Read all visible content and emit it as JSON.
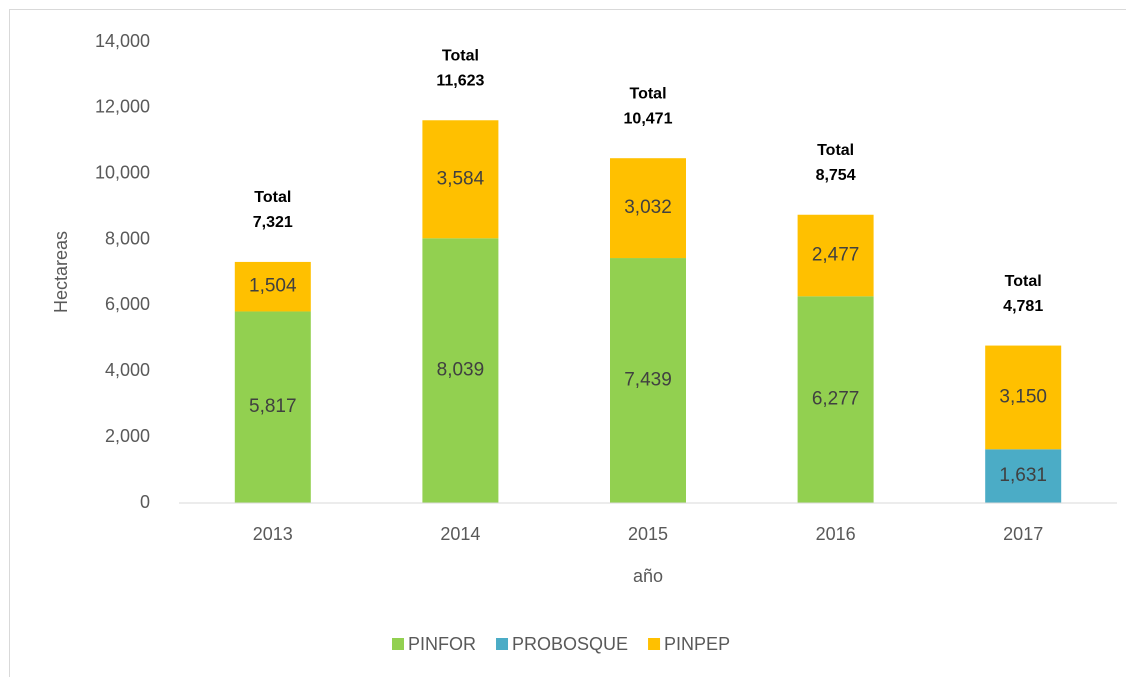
{
  "chart_data": {
    "type": "stacked_bar",
    "categories": [
      "2013",
      "2014",
      "2015",
      "2016",
      "2017"
    ],
    "series": [
      {
        "name": "PINFOR",
        "color": "#92d050",
        "values": [
          5817,
          8039,
          7439,
          6277,
          null
        ],
        "value_labels": [
          "5,817",
          "8,039",
          "7,439",
          "6,277",
          null
        ]
      },
      {
        "name": "PROBOSQUE",
        "color": "#4bacc6",
        "values": [
          null,
          null,
          null,
          null,
          1631
        ],
        "value_labels": [
          null,
          null,
          null,
          null,
          "1,631"
        ]
      },
      {
        "name": "PINPEP",
        "color": "#ffc000",
        "values": [
          1504,
          3584,
          3032,
          2477,
          3150
        ],
        "value_labels": [
          "1,504",
          "3,584",
          "3,032",
          "2,477",
          "3,150"
        ]
      }
    ],
    "total_label": "Total",
    "totals": [
      7321,
      11623,
      10471,
      8754,
      4781
    ],
    "total_labels": [
      "7,321",
      "11,623",
      "10,471",
      "8,754",
      "4,781"
    ],
    "xlabel": "año",
    "ylabel": "Hectareas",
    "ylim": [
      0,
      14000
    ],
    "yticks": [
      0,
      {
        "value": 2000,
        "label": "2,000"
      },
      {
        "value": 4000,
        "label": "4,000"
      },
      {
        "value": 6000,
        "label": "6,000"
      },
      {
        "value": 8000,
        "label": "8,000"
      },
      {
        "value": 10000,
        "label": "10,000"
      },
      {
        "value": 12000,
        "label": "12,000"
      },
      {
        "value": 14000,
        "label": "14,000"
      }
    ],
    "legend": "bottom"
  }
}
